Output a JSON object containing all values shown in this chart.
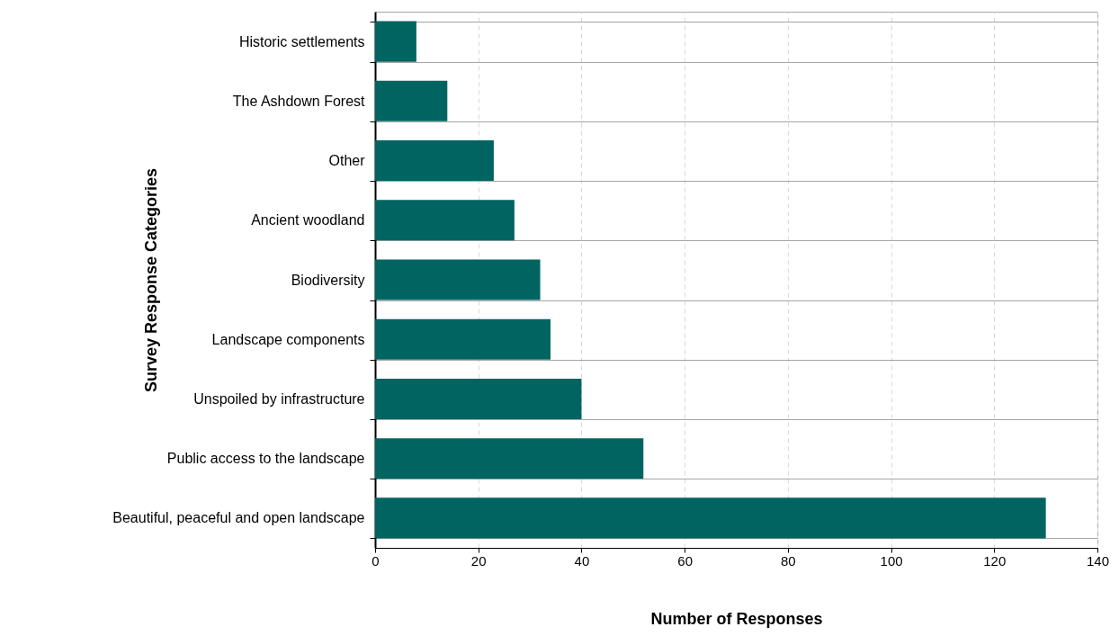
{
  "chart_data": {
    "type": "bar",
    "orientation": "horizontal",
    "xlabel": "Number of Responses",
    "ylabel": "Survey Response Categories",
    "categories": [
      "Historic settlements",
      "The Ashdown Forest",
      "Other",
      "Ancient woodland",
      "Biodiversity",
      "Landscape components",
      "Unspoiled by infrastructure",
      "Public access to the landscape",
      "Beautiful, peaceful and open landscape"
    ],
    "values": [
      8,
      14,
      23,
      27,
      32,
      34,
      40,
      52,
      130
    ],
    "color": "#006461",
    "xlim": [
      0,
      140
    ],
    "xticks": [
      0,
      20,
      40,
      60,
      80,
      100,
      120,
      140
    ],
    "grid": true
  }
}
